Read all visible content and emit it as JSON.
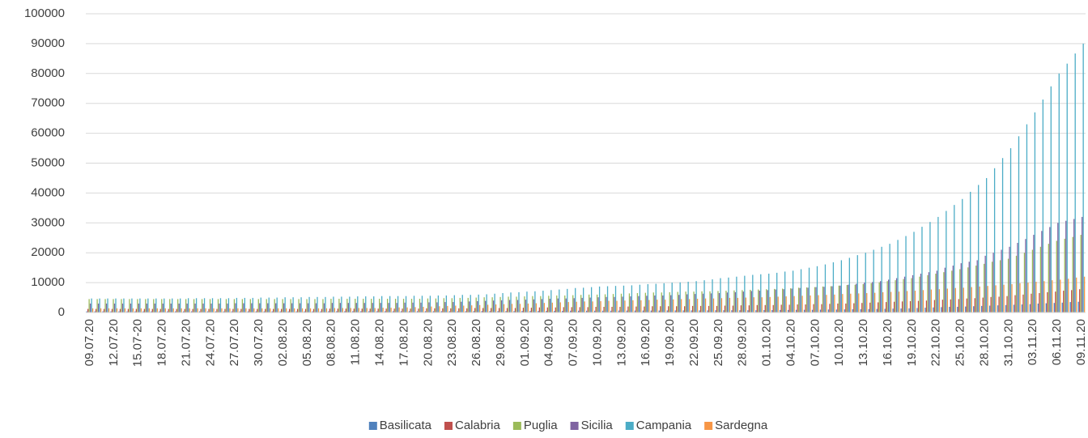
{
  "chart_data": {
    "type": "bar",
    "categories": [
      "09.07.20",
      null,
      null,
      "12.07.20",
      null,
      null,
      "15.07-20",
      null,
      null,
      "18.07.20",
      null,
      null,
      "21.07.20",
      null,
      null,
      "24.07.20",
      null,
      null,
      "27.07.20",
      null,
      null,
      "30.07.20",
      null,
      null,
      "02.08.20",
      null,
      null,
      "05.08.20",
      null,
      null,
      "08.08.20",
      null,
      null,
      "11.08.20",
      null,
      null,
      "14.08.20",
      null,
      null,
      "17.08.20",
      null,
      null,
      "20.08.20",
      null,
      null,
      "23.08.20",
      null,
      null,
      "26.08.20",
      null,
      null,
      "29.08.20",
      null,
      null,
      "01.09.20",
      null,
      null,
      "04.09.20",
      null,
      null,
      "07.09.20",
      null,
      null,
      "10.09.20",
      null,
      null,
      "13.09.20",
      null,
      null,
      "16.09.20",
      null,
      null,
      "19.09.20",
      null,
      null,
      "22.09.20",
      null,
      null,
      "25.09.20",
      null,
      null,
      "28.09.20",
      null,
      null,
      "01.10.20",
      null,
      null,
      "04.10.20",
      null,
      null,
      "07.10.20",
      null,
      null,
      "10.10.20",
      null,
      null,
      "13.10.20",
      null,
      null,
      "16.10.20",
      null,
      null,
      "19.10.20",
      null,
      null,
      "22.10.20",
      null,
      null,
      "25.10.20",
      null,
      null,
      "28.10.20",
      null,
      null,
      "31.10.20",
      null,
      null,
      "03.11.20",
      null,
      null,
      "06.11.20",
      null,
      null,
      "09.11.20"
    ],
    "series": [
      {
        "name": "Basilicata",
        "color": "#4f81bd",
        "values": [
          400,
          400,
          400,
          400,
          400,
          400,
          400,
          400,
          400,
          400,
          400,
          400,
          400,
          400,
          400,
          400,
          400,
          400,
          400,
          400,
          400,
          400,
          400,
          400,
          400,
          400,
          400,
          400,
          400,
          400,
          450,
          450,
          450,
          450,
          450,
          450,
          450,
          450,
          450,
          450,
          450,
          450,
          450,
          450,
          450,
          450,
          450,
          450,
          500,
          500,
          500,
          500,
          500,
          500,
          550,
          550,
          550,
          550,
          550,
          550,
          600,
          600,
          600,
          600,
          600,
          600,
          650,
          650,
          650,
          650,
          650,
          650,
          700,
          700,
          700,
          700,
          700,
          700,
          750,
          750,
          750,
          750,
          750,
          750,
          800,
          800,
          850,
          850,
          900,
          900,
          900,
          950,
          1000,
          1000,
          1050,
          1100,
          1100,
          1150,
          1200,
          1250,
          1300,
          1350,
          1400,
          1500,
          1600,
          1700,
          1800,
          1900,
          1900,
          2000,
          2100,
          2200,
          2300,
          2400,
          2500,
          2600,
          2700,
          2800,
          3000,
          3100,
          3200,
          3300,
          3500,
          3600
        ]
      },
      {
        "name": "Calabria",
        "color": "#c0504d",
        "values": [
          1200,
          1200,
          1200,
          1200,
          1200,
          1200,
          1200,
          1200,
          1200,
          1200,
          1200,
          1200,
          1200,
          1200,
          1200,
          1200,
          1200,
          1200,
          1200,
          1200,
          1200,
          1200,
          1200,
          1200,
          1200,
          1200,
          1200,
          1200,
          1200,
          1200,
          1300,
          1300,
          1300,
          1300,
          1300,
          1300,
          1300,
          1300,
          1300,
          1300,
          1300,
          1300,
          1400,
          1400,
          1400,
          1400,
          1400,
          1400,
          1500,
          1500,
          1500,
          1500,
          1500,
          1500,
          1600,
          1600,
          1700,
          1700,
          1700,
          1800,
          1800,
          1800,
          1800,
          1900,
          1900,
          1900,
          1900,
          2000,
          2000,
          2000,
          2100,
          2100,
          2100,
          2100,
          2100,
          2200,
          2200,
          2200,
          2200,
          2300,
          2300,
          2400,
          2400,
          2500,
          2500,
          2500,
          2600,
          2600,
          2700,
          2700,
          2800,
          2800,
          2900,
          3000,
          3000,
          3100,
          3200,
          3300,
          3400,
          3500,
          3600,
          3700,
          3800,
          3900,
          4000,
          4200,
          4300,
          4400,
          4500,
          4700,
          4800,
          5000,
          5200,
          5300,
          5500,
          5800,
          6000,
          6300,
          6500,
          6800,
          7000,
          7300,
          7500,
          7800
        ]
      },
      {
        "name": "Puglia",
        "color": "#9bbb59",
        "values": [
          4500,
          4500,
          4500,
          4500,
          4500,
          4500,
          4500,
          4500,
          4500,
          4500,
          4500,
          4500,
          4500,
          4500,
          4500,
          4500,
          4500,
          4500,
          4500,
          4500,
          4500,
          4500,
          4500,
          4500,
          4500,
          4500,
          4500,
          4500,
          4500,
          4500,
          4600,
          4600,
          4600,
          4600,
          4600,
          4600,
          4600,
          4600,
          4600,
          4600,
          4600,
          4600,
          4700,
          4700,
          4800,
          4800,
          4900,
          4900,
          5000,
          5100,
          5100,
          5200,
          5300,
          5300,
          5400,
          5500,
          5500,
          5600,
          5700,
          5700,
          5800,
          5900,
          6000,
          6000,
          6100,
          6200,
          6300,
          6400,
          6500,
          6600,
          6700,
          6700,
          6800,
          6900,
          7000,
          7000,
          7100,
          7100,
          7200,
          7300,
          7400,
          7500,
          7600,
          7700,
          7800,
          7900,
          8000,
          8100,
          8300,
          8400,
          8500,
          8700,
          8800,
          9000,
          9200,
          9300,
          9500,
          9800,
          10100,
          10500,
          10800,
          11200,
          11500,
          12000,
          12500,
          13000,
          13500,
          14000,
          14500,
          15100,
          15700,
          16300,
          17000,
          17500,
          18000,
          19000,
          20000,
          21000,
          22000,
          23000,
          24000,
          24700,
          25300,
          26000
        ]
      },
      {
        "name": "Sicilia",
        "color": "#8064a2",
        "values": [
          3000,
          3000,
          3000,
          3000,
          3000,
          3000,
          3000,
          3000,
          3000,
          3000,
          3000,
          3000,
          3000,
          3000,
          3000,
          3000,
          3000,
          3000,
          3100,
          3100,
          3100,
          3100,
          3100,
          3100,
          3100,
          3100,
          3100,
          3100,
          3100,
          3100,
          3200,
          3200,
          3200,
          3200,
          3200,
          3200,
          3200,
          3200,
          3200,
          3300,
          3300,
          3300,
          3400,
          3400,
          3500,
          3500,
          3600,
          3700,
          3800,
          3900,
          4000,
          4100,
          4200,
          4200,
          4300,
          4400,
          4500,
          4600,
          4700,
          4700,
          4800,
          4900,
          5000,
          5100,
          5200,
          5200,
          5300,
          5400,
          5500,
          5600,
          5700,
          5700,
          5800,
          5900,
          6100,
          6200,
          6300,
          6400,
          6500,
          6700,
          6800,
          7000,
          7200,
          7300,
          7500,
          7700,
          7800,
          8000,
          8200,
          8300,
          8500,
          8600,
          8800,
          9000,
          9300,
          9600,
          10000,
          10200,
          10500,
          11000,
          11500,
          12000,
          12500,
          13000,
          13500,
          14000,
          15000,
          15700,
          16500,
          17000,
          17500,
          19000,
          20000,
          21000,
          22000,
          23300,
          24600,
          26000,
          27300,
          28600,
          30000,
          30700,
          31300,
          32000
        ]
      },
      {
        "name": "Campania",
        "color": "#4bacc6",
        "values": [
          4700,
          4700,
          4700,
          4700,
          4700,
          4700,
          4700,
          4700,
          4700,
          4700,
          4700,
          4700,
          4800,
          4800,
          4800,
          4800,
          4800,
          4800,
          4900,
          4900,
          4900,
          5000,
          5000,
          5000,
          5100,
          5100,
          5100,
          5200,
          5200,
          5200,
          5300,
          5300,
          5300,
          5400,
          5400,
          5400,
          5500,
          5500,
          5500,
          5500,
          5600,
          5600,
          5600,
          5700,
          5700,
          5800,
          5900,
          5900,
          6000,
          6100,
          6300,
          6500,
          6700,
          6800,
          7000,
          7100,
          7300,
          7500,
          7700,
          7900,
          8200,
          8300,
          8500,
          8700,
          8800,
          8900,
          9000,
          9100,
          9300,
          9500,
          9600,
          9800,
          10000,
          10100,
          10300,
          10500,
          10800,
          11100,
          11500,
          11700,
          12000,
          12300,
          12600,
          12800,
          13000,
          13300,
          13700,
          14000,
          14500,
          15000,
          15500,
          16100,
          16800,
          17500,
          18300,
          19200,
          20000,
          21000,
          22000,
          23000,
          24300,
          25600,
          27000,
          28700,
          30300,
          32000,
          34000,
          36000,
          38000,
          40400,
          42700,
          45000,
          48300,
          51700,
          55000,
          59000,
          63000,
          67000,
          71300,
          75700,
          80000,
          83300,
          86700,
          90000
        ]
      },
      {
        "name": "Sardegna",
        "color": "#f79646",
        "values": [
          1400,
          1400,
          1400,
          1400,
          1400,
          1400,
          1400,
          1400,
          1400,
          1400,
          1400,
          1400,
          1400,
          1400,
          1400,
          1400,
          1400,
          1400,
          1400,
          1400,
          1400,
          1400,
          1400,
          1400,
          1400,
          1400,
          1400,
          1400,
          1400,
          1400,
          1500,
          1500,
          1500,
          1500,
          1500,
          1500,
          1600,
          1600,
          1700,
          1700,
          1800,
          1900,
          2000,
          2100,
          2200,
          2300,
          2300,
          2400,
          2500,
          2600,
          2700,
          2800,
          2900,
          2900,
          3000,
          3100,
          3200,
          3300,
          3400,
          3500,
          3600,
          3700,
          3700,
          3800,
          3900,
          3900,
          4000,
          4100,
          4100,
          4200,
          4300,
          4300,
          4400,
          4500,
          4500,
          4600,
          4700,
          4700,
          4800,
          4900,
          4900,
          5000,
          5100,
          5100,
          5200,
          5300,
          5400,
          5500,
          5600,
          5700,
          5800,
          5900,
          6000,
          6200,
          6300,
          6400,
          6500,
          6600,
          6800,
          6900,
          7000,
          7200,
          7300,
          7500,
          7700,
          7800,
          8000,
          8200,
          8300,
          8500,
          8700,
          8900,
          9100,
          9300,
          9500,
          9800,
          10000,
          10300,
          10500,
          10800,
          11000,
          11300,
          11700,
          12000
        ]
      }
    ],
    "ylim": [
      0,
      100000
    ],
    "yticks": [
      0,
      10000,
      20000,
      30000,
      40000,
      50000,
      60000,
      70000,
      80000,
      90000,
      100000
    ],
    "grid": true,
    "legend": "bottom"
  }
}
